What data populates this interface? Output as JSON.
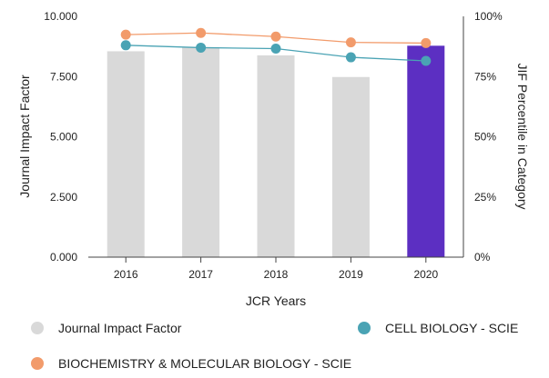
{
  "chart_data": {
    "type": "bar",
    "xlabel": "JCR Years",
    "ylabel": "Journal Impact Factor",
    "y2label": "JIF Percentile in Category",
    "categories": [
      "2016",
      "2017",
      "2018",
      "2019",
      "2020"
    ],
    "ylim": [
      0,
      10
    ],
    "y2lim": [
      0,
      100
    ],
    "yticks": [
      "0.000",
      "2.500",
      "5.000",
      "7.500",
      "10.000"
    ],
    "y2ticks": [
      "0%",
      "25%",
      "50%",
      "75%",
      "100%"
    ],
    "grid": false,
    "series": [
      {
        "name": "Journal Impact Factor",
        "type": "bar",
        "axis": "left",
        "values": [
          8.55,
          8.72,
          8.38,
          7.48,
          8.78
        ],
        "color": "#d9d9d9",
        "highlight_color": "#5c2fc2",
        "highlight_index": 4
      },
      {
        "name": "CELL BIOLOGY - SCIE",
        "type": "line",
        "axis": "right",
        "values": [
          88,
          87,
          86.6,
          83,
          81.5
        ],
        "color": "#4aa3b4"
      },
      {
        "name": "BIOCHEMISTRY & MOLECULAR BIOLOGY - SCIE",
        "type": "line",
        "axis": "right",
        "values": [
          92.4,
          93.1,
          91.6,
          89.2,
          88.9
        ],
        "color": "#f29b6b"
      }
    ],
    "legend_placement": "bottom"
  },
  "legend": {
    "items": [
      {
        "label": "Journal Impact Factor",
        "color": "#d9d9d9"
      },
      {
        "label": "CELL BIOLOGY - SCIE",
        "color": "#4aa3b4"
      },
      {
        "label": "BIOCHEMISTRY & MOLECULAR BIOLOGY - SCIE",
        "color": "#f29b6b"
      }
    ]
  }
}
